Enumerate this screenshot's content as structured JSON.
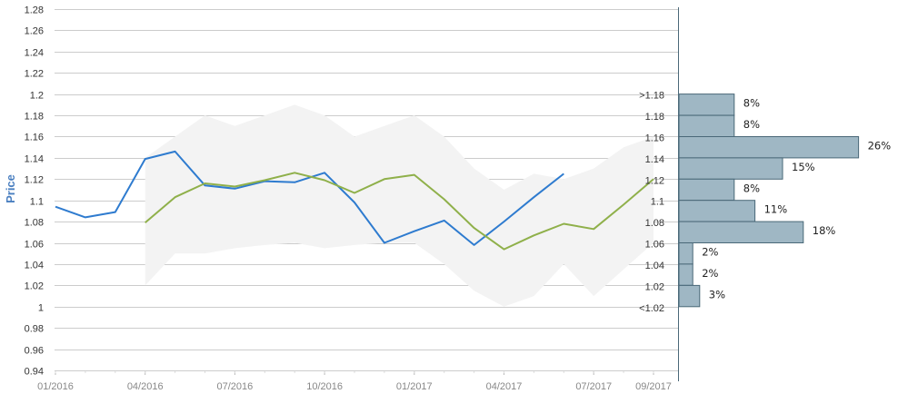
{
  "chart_data": {
    "type": "line",
    "title": "",
    "ylabel": "Price",
    "xlabel": "",
    "ylim": [
      0.94,
      1.28
    ],
    "y_ticks": [
      "0.94",
      "0.96",
      "0.98",
      "1",
      "1.02",
      "1.04",
      "1.06",
      "1.08",
      "1.1",
      "1.12",
      "1.14",
      "1.16",
      "1.18",
      "1.2",
      "1.22",
      "1.24",
      "1.26",
      "1.28"
    ],
    "x_ticks": [
      {
        "date": "2016-01",
        "label": "01/2016"
      },
      {
        "date": "2016-04",
        "label": "04/2016"
      },
      {
        "date": "2016-07",
        "label": "07/2016"
      },
      {
        "date": "2016-10",
        "label": "10/2016"
      },
      {
        "date": "2017-01",
        "label": "01/2017"
      },
      {
        "date": "2017-04",
        "label": "04/2017"
      },
      {
        "date": "2017-07",
        "label": "07/2017"
      },
      {
        "date": "2017-09",
        "label": "09/2017"
      }
    ],
    "grid": true,
    "colors": {
      "actual": "#2e7bcf",
      "forecast": "#8fb04a",
      "band": "#f3f3f3",
      "histogram": "#9fb7c4",
      "histogram_border": "#4a6878",
      "grid": "#cccccc"
    },
    "series": [
      {
        "points": [
          [
            "2016-01",
            1.094
          ],
          [
            "2016-02",
            1.084
          ],
          [
            "2016-03",
            1.089
          ],
          [
            "2016-04",
            1.139
          ],
          [
            "2016-05",
            1.146
          ],
          [
            "2016-06",
            1.114
          ],
          [
            "2016-07",
            1.111
          ],
          [
            "2016-08",
            1.118
          ],
          [
            "2016-09",
            1.117
          ],
          [
            "2016-10",
            1.126
          ],
          [
            "2016-11",
            1.098
          ],
          [
            "2016-12",
            1.06
          ],
          [
            "2017-01",
            1.071
          ],
          [
            "2017-02",
            1.081
          ],
          [
            "2017-03",
            1.058
          ],
          [
            "2017-04",
            1.08
          ],
          [
            "2017-05",
            1.103
          ],
          [
            "2017-06",
            1.125
          ]
        ]
      },
      {
        "points": [
          [
            "2016-04",
            1.079
          ],
          [
            "2016-05",
            1.103
          ],
          [
            "2016-06",
            1.116
          ],
          [
            "2016-07",
            1.113
          ],
          [
            "2016-08",
            1.119
          ],
          [
            "2016-09",
            1.126
          ],
          [
            "2016-10",
            1.119
          ],
          [
            "2016-11",
            1.107
          ],
          [
            "2016-12",
            1.12
          ],
          [
            "2017-01",
            1.124
          ],
          [
            "2017-02",
            1.101
          ],
          [
            "2017-03",
            1.074
          ],
          [
            "2017-04",
            1.054
          ],
          [
            "2017-05",
            1.067
          ],
          [
            "2017-06",
            1.078
          ],
          [
            "2017-07",
            1.073
          ],
          [
            "2017-08",
            1.096
          ],
          [
            "2017-09",
            1.12
          ]
        ]
      }
    ],
    "band": {
      "upper": [
        [
          "2016-04",
          1.14
        ],
        [
          "2016-05",
          1.16
        ],
        [
          "2016-06",
          1.18
        ],
        [
          "2016-07",
          1.17
        ],
        [
          "2016-08",
          1.18
        ],
        [
          "2016-09",
          1.19
        ],
        [
          "2016-10",
          1.18
        ],
        [
          "2016-11",
          1.16
        ],
        [
          "2016-12",
          1.17
        ],
        [
          "2017-01",
          1.18
        ],
        [
          "2017-02",
          1.16
        ],
        [
          "2017-03",
          1.13
        ],
        [
          "2017-04",
          1.11
        ],
        [
          "2017-05",
          1.125
        ],
        [
          "2017-06",
          1.12
        ],
        [
          "2017-07",
          1.13
        ],
        [
          "2017-08",
          1.15
        ],
        [
          "2017-09",
          1.16
        ]
      ],
      "lower": [
        [
          "2016-04",
          1.02
        ],
        [
          "2016-05",
          1.05
        ],
        [
          "2016-06",
          1.05
        ],
        [
          "2016-07",
          1.055
        ],
        [
          "2016-08",
          1.058
        ],
        [
          "2016-09",
          1.06
        ],
        [
          "2016-10",
          1.055
        ],
        [
          "2016-11",
          1.058
        ],
        [
          "2016-12",
          1.06
        ],
        [
          "2017-01",
          1.06
        ],
        [
          "2017-02",
          1.04
        ],
        [
          "2017-03",
          1.015
        ],
        [
          "2017-04",
          1.0
        ],
        [
          "2017-05",
          1.01
        ],
        [
          "2017-06",
          1.04
        ],
        [
          "2017-07",
          1.01
        ],
        [
          "2017-08",
          1.035
        ],
        [
          "2017-09",
          1.06
        ]
      ]
    },
    "histogram": {
      "type": "bar",
      "orientation": "horizontal",
      "bins": [
        {
          "label": ">1.18",
          "low": 1.18,
          "high": 1.2,
          "percent": 8,
          "percent_label": "8%"
        },
        {
          "label": "1.18",
          "low": 1.16,
          "high": 1.18,
          "percent": 8,
          "percent_label": "8%"
        },
        {
          "label": "1.16",
          "low": 1.14,
          "high": 1.16,
          "percent": 26,
          "percent_label": "26%"
        },
        {
          "label": "1.14",
          "low": 1.12,
          "high": 1.14,
          "percent": 15,
          "percent_label": "15%"
        },
        {
          "label": "1.12",
          "low": 1.1,
          "high": 1.12,
          "percent": 8,
          "percent_label": "8%"
        },
        {
          "label": "1.1",
          "low": 1.08,
          "high": 1.1,
          "percent": 11,
          "percent_label": "11%"
        },
        {
          "label": "1.08",
          "low": 1.06,
          "high": 1.08,
          "percent": 18,
          "percent_label": "18%"
        },
        {
          "label": "1.06",
          "low": 1.04,
          "high": 1.06,
          "percent": 2,
          "percent_label": "2%"
        },
        {
          "label": "1.04",
          "low": 1.02,
          "high": 1.04,
          "percent": 2,
          "percent_label": "2%"
        },
        {
          "label": "1.02",
          "low": 1.0,
          "high": 1.02,
          "percent": 3,
          "percent_label": "3%"
        }
      ],
      "bottom_label": "<1.02"
    }
  }
}
